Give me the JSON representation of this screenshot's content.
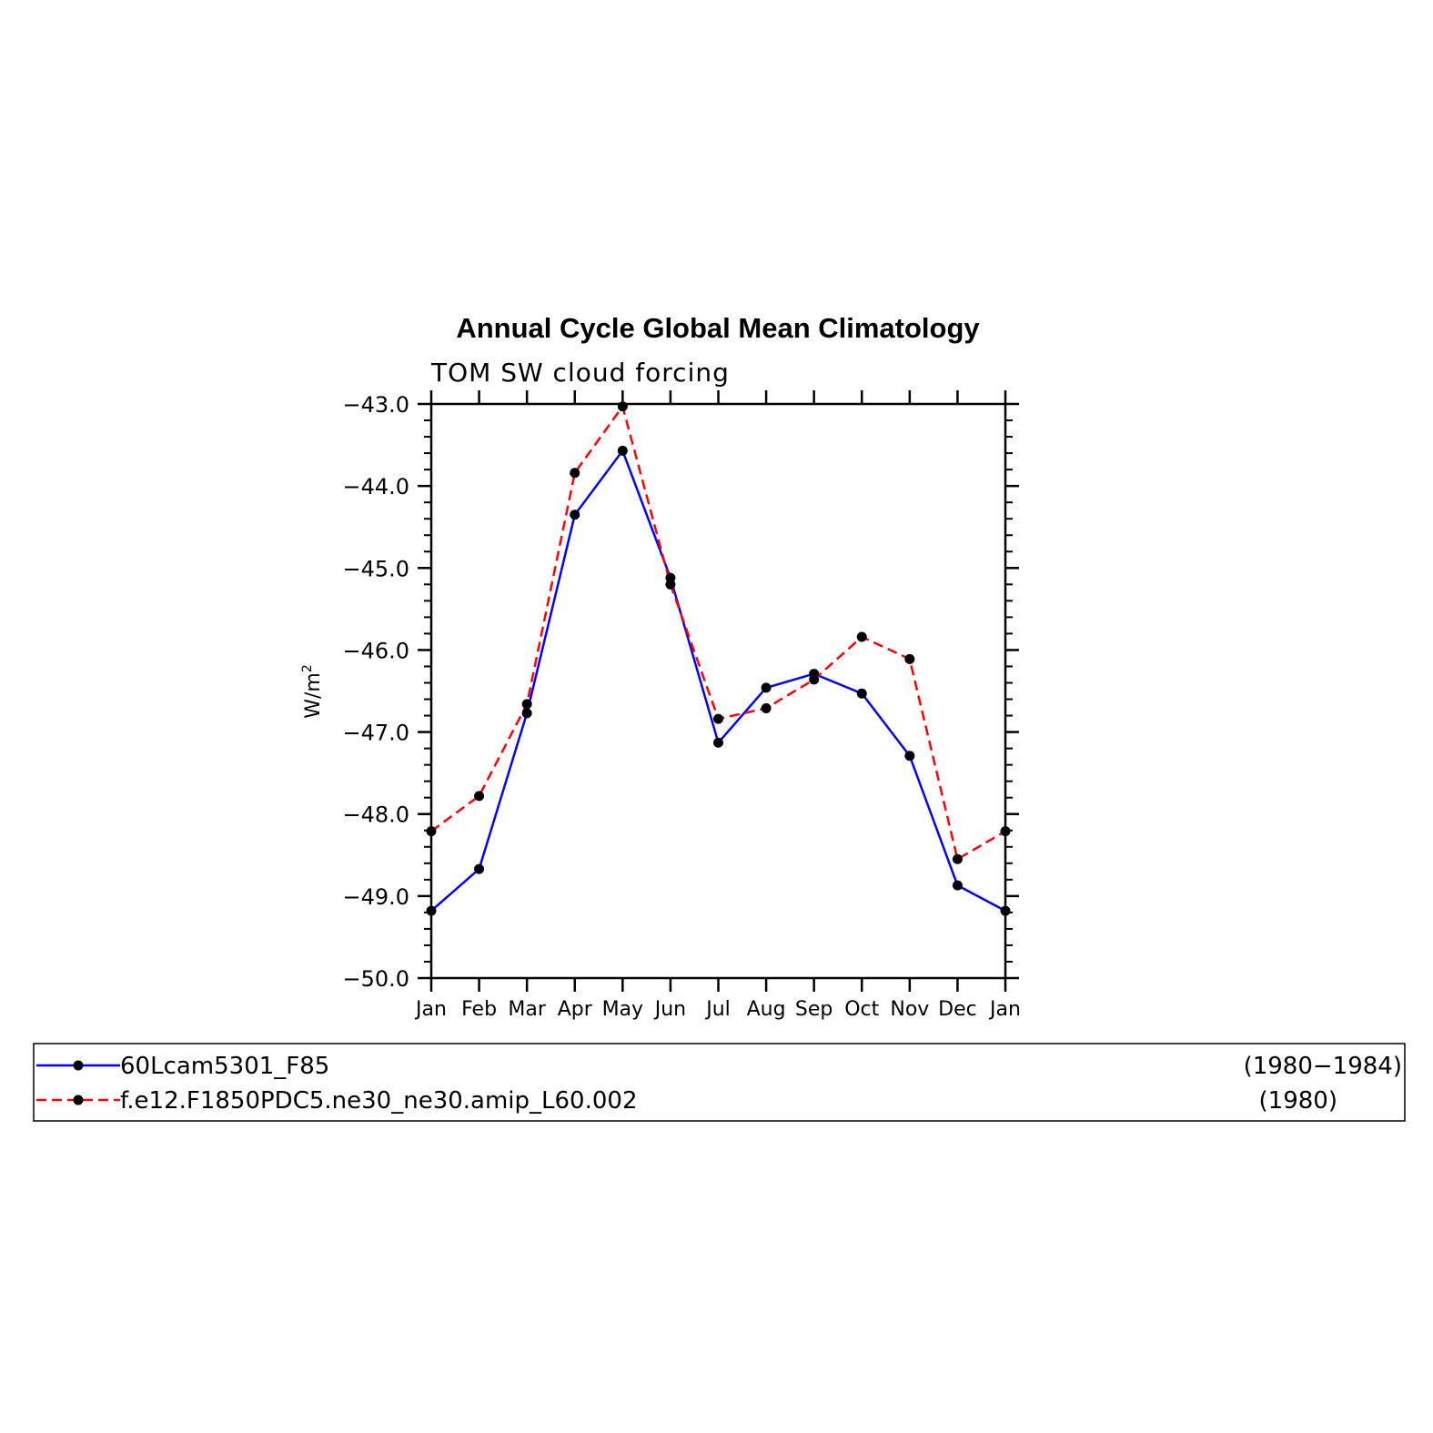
{
  "chart_data": {
    "type": "line",
    "title": "Annual Cycle Global Mean Climatology",
    "subtitle": "TOM SW cloud forcing",
    "ylabel_main": "W/m",
    "ylabel_sup": "2",
    "ylim": [
      -50.0,
      -43.0
    ],
    "yticks": [
      -50.0,
      -49.0,
      -48.0,
      -47.0,
      -46.0,
      -45.0,
      -44.0,
      -43.0
    ],
    "ytick_labels": [
      "−50.0",
      "−49.0",
      "−48.0",
      "−47.0",
      "−46.0",
      "−45.0",
      "−44.0",
      "−43.0"
    ],
    "categories": [
      "Jan",
      "Feb",
      "Mar",
      "Apr",
      "May",
      "Jun",
      "Jul",
      "Aug",
      "Sep",
      "Oct",
      "Nov",
      "Dec",
      "Jan"
    ],
    "series": [
      {
        "name": "60Lcam5301_F85",
        "period": "(1980−1984)",
        "color": "#0000ff",
        "dash": "solid",
        "values": [
          -49.18,
          -48.67,
          -46.77,
          -44.35,
          -43.57,
          -45.12,
          -47.13,
          -46.46,
          -46.29,
          -46.53,
          -47.29,
          -48.87,
          -49.18
        ]
      },
      {
        "name": "f.e12.F1850PDC5.ne30_ne30.amip_L60.002",
        "period": "(1980)",
        "color": "#ff0000",
        "dash": "dashed",
        "values": [
          -48.21,
          -47.78,
          -46.66,
          -43.84,
          -43.03,
          -45.2,
          -46.84,
          -46.71,
          -46.36,
          -45.84,
          -46.11,
          -48.55,
          -48.21
        ]
      }
    ],
    "marker_color": "#000000"
  }
}
